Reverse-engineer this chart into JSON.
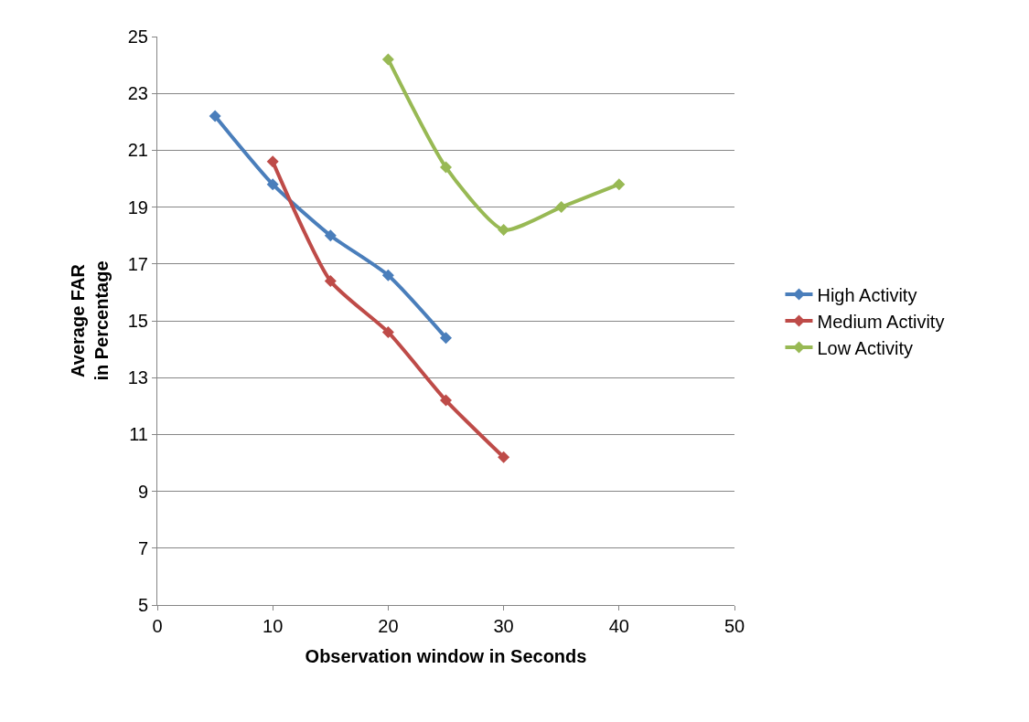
{
  "chart_data": {
    "type": "line",
    "xlabel": "Observation window in Seconds",
    "ylabel": "Average FAR\nin Percentage",
    "xlim": [
      0,
      50
    ],
    "xticks": [
      0,
      10,
      20,
      30,
      40,
      50
    ],
    "ylim": [
      5,
      25
    ],
    "yticks": [
      5,
      7,
      9,
      11,
      13,
      15,
      17,
      19,
      21,
      23,
      25
    ],
    "grid": "y",
    "legend": "right",
    "marker": "diamond",
    "line_style": "solid",
    "series": [
      {
        "name": "High Activity",
        "color": "#4a7ebb",
        "x": [
          5,
          10,
          15,
          20,
          25
        ],
        "values": [
          22.2,
          19.8,
          18.0,
          16.6,
          14.4
        ]
      },
      {
        "name": "Medium Activity",
        "color": "#be4b48",
        "x": [
          10,
          15,
          20,
          25,
          30
        ],
        "values": [
          20.6,
          16.4,
          14.6,
          12.2,
          10.2
        ]
      },
      {
        "name": "Low Activity",
        "color": "#98b954",
        "x": [
          20,
          25,
          30,
          35,
          40
        ],
        "values": [
          24.2,
          20.4,
          18.2,
          19.0,
          19.8
        ]
      }
    ]
  }
}
